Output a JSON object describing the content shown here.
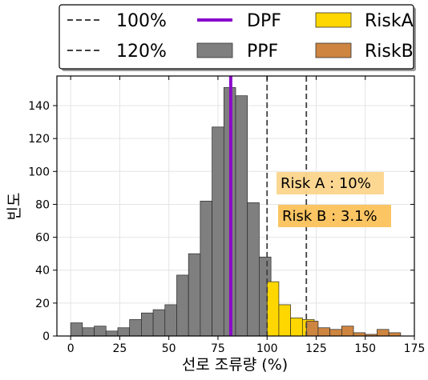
{
  "chart_data": {
    "type": "bar",
    "xlabel": "선로 조류량 (%)",
    "ylabel": "빈도",
    "xlim": [
      -7,
      175
    ],
    "ylim": [
      0,
      158
    ],
    "xticks": [
      0,
      25,
      50,
      75,
      100,
      125,
      150,
      175
    ],
    "yticks": [
      0,
      20,
      40,
      60,
      80,
      100,
      120,
      140
    ],
    "grid": true,
    "legend_position": "top, outside plot, 3 columns",
    "reference_lines": [
      {
        "name": "100%",
        "x": 100,
        "style": "dashed",
        "color": "#404040"
      },
      {
        "name": "120%",
        "x": 120,
        "style": "dashed",
        "color": "#404040"
      },
      {
        "name": "DPF",
        "x": 81.5,
        "style": "solid",
        "color": "#8a08cc"
      }
    ],
    "series": [
      {
        "name": "PPF",
        "color": "#7f7f7f",
        "bins": [
          [
            0,
            6,
            8
          ],
          [
            6,
            12,
            5
          ],
          [
            12,
            18,
            6
          ],
          [
            18,
            24,
            3
          ],
          [
            24,
            30,
            5
          ],
          [
            30,
            36,
            10
          ],
          [
            36,
            42,
            14
          ],
          [
            42,
            48,
            16
          ],
          [
            48,
            54,
            19
          ],
          [
            54,
            60,
            37
          ],
          [
            60,
            66,
            50
          ],
          [
            66,
            72,
            82
          ],
          [
            72,
            78,
            127
          ],
          [
            78,
            84,
            151
          ],
          [
            84,
            90,
            146
          ],
          [
            90,
            96,
            81
          ],
          [
            96,
            102,
            48
          ]
        ]
      },
      {
        "name": "RiskA",
        "color": "#ffd700",
        "bins": [
          [
            100,
            106,
            33
          ],
          [
            106,
            112,
            19
          ],
          [
            112,
            118,
            11
          ],
          [
            118,
            124,
            10
          ]
        ]
      },
      {
        "name": "RiskB",
        "color": "#cd8540",
        "bins": [
          [
            120,
            126,
            9
          ],
          [
            126,
            132,
            5
          ],
          [
            132,
            138,
            4
          ],
          [
            138,
            144,
            6
          ],
          [
            144,
            150,
            2
          ],
          [
            150,
            156,
            1
          ],
          [
            156,
            162,
            4
          ],
          [
            162,
            168,
            2
          ]
        ]
      }
    ],
    "annotations": [
      {
        "text": "Risk A : 10%",
        "box_color": "#fcd58c"
      },
      {
        "text": "Risk B : 3.1%",
        "box_color": "#fbc25b"
      }
    ]
  }
}
